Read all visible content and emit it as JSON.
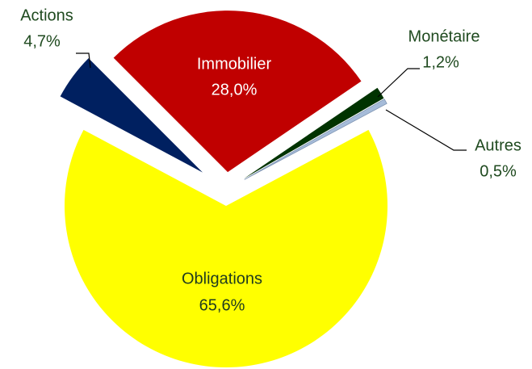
{
  "chart_data": {
    "type": "pie",
    "categories": [
      "Immobilier",
      "Monétaire",
      "Autres",
      "Obligations",
      "Actions"
    ],
    "values": [
      28.0,
      1.2,
      0.5,
      65.6,
      4.7
    ],
    "value_labels": [
      "28,0%",
      "1,2%",
      "0,5%",
      "65,6%",
      "4,7%"
    ],
    "colors": [
      "#c00000",
      "#003300",
      "#a6bcd9",
      "#ffff00",
      "#002060"
    ]
  }
}
